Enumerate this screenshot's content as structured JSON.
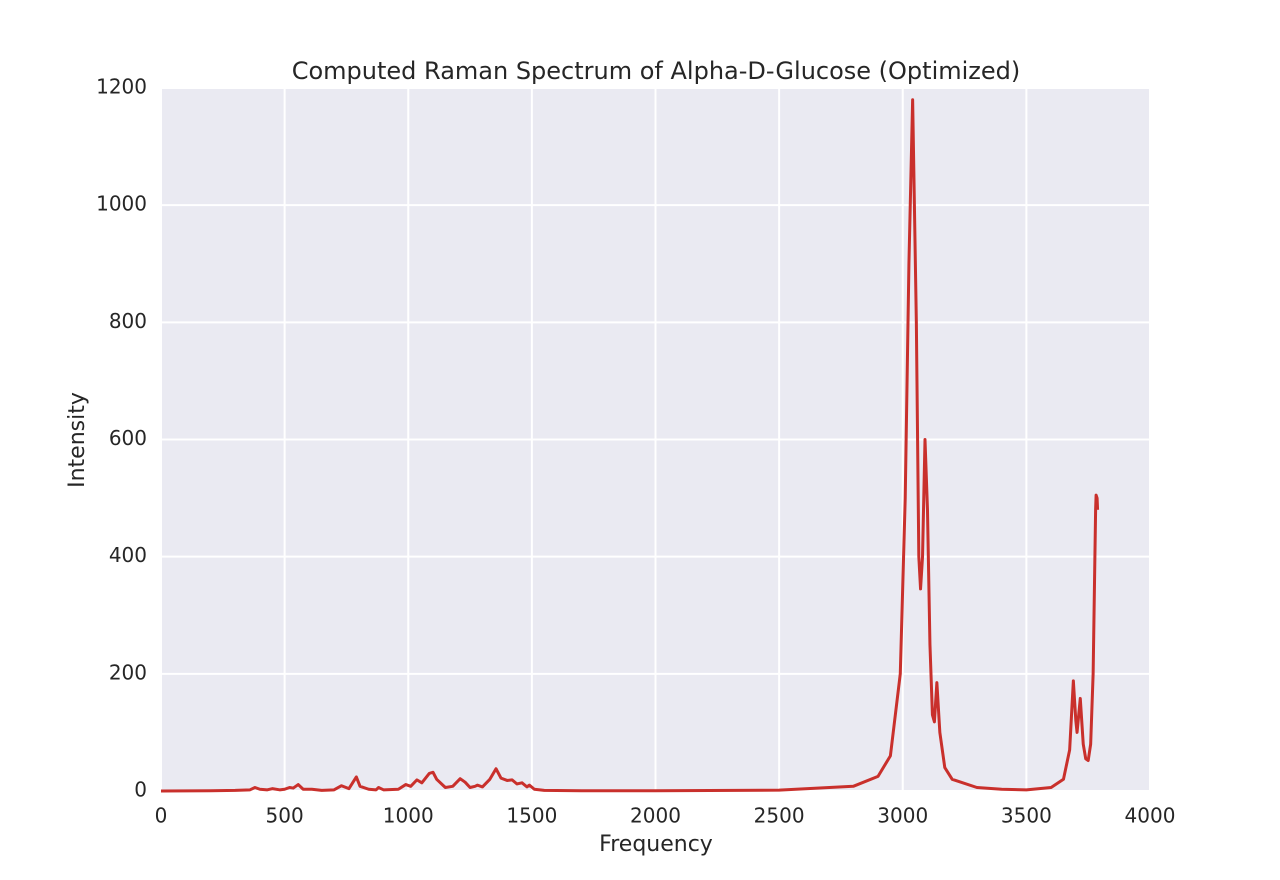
{
  "chart_data": {
    "type": "line",
    "title": "Computed Raman Spectrum of Alpha-D-Glucose (Optimized)",
    "x_label": "Frequency",
    "y_label": "Intensity",
    "x": [
      0,
      200,
      300,
      360,
      380,
      400,
      430,
      450,
      480,
      500,
      520,
      535,
      555,
      575,
      610,
      650,
      700,
      730,
      760,
      790,
      805,
      840,
      870,
      880,
      900,
      960,
      990,
      1010,
      1035,
      1055,
      1085,
      1100,
      1115,
      1150,
      1180,
      1210,
      1230,
      1250,
      1270,
      1280,
      1300,
      1330,
      1355,
      1375,
      1400,
      1420,
      1440,
      1460,
      1480,
      1490,
      1510,
      1550,
      1700,
      2000,
      2500,
      2800,
      2900,
      2950,
      2990,
      3010,
      3025,
      3040,
      3055,
      3065,
      3072,
      3080,
      3090,
      3100,
      3110,
      3120,
      3128,
      3138,
      3150,
      3170,
      3200,
      3300,
      3400,
      3500,
      3600,
      3650,
      3675,
      3690,
      3700,
      3705,
      3718,
      3730,
      3740,
      3750,
      3760,
      3770,
      3780,
      3782,
      3786,
      3788
    ],
    "series": [
      {
        "name": "Intensity",
        "color": "#c9302c",
        "values": [
          0,
          0.5,
          1,
          2,
          6,
          3,
          2,
          4,
          2,
          3,
          6,
          5,
          11,
          3,
          3,
          1,
          2,
          9,
          4,
          24,
          8,
          3,
          2,
          6,
          2,
          3,
          11,
          8,
          19,
          14,
          30,
          32,
          20,
          6,
          8,
          21,
          15,
          6,
          8,
          10,
          7,
          20,
          38,
          22,
          18,
          19,
          12,
          14,
          7,
          10,
          3,
          1,
          0.5,
          0.5,
          1.5,
          8,
          25,
          60,
          200,
          500,
          900,
          1180,
          800,
          400,
          345,
          400,
          600,
          480,
          250,
          130,
          118,
          185,
          100,
          40,
          20,
          6,
          3,
          2,
          6,
          20,
          70,
          188,
          120,
          100,
          158,
          80,
          55,
          52,
          80,
          200,
          480,
          505,
          500,
          480
        ]
      }
    ],
    "xlim": [
      0,
      4000
    ],
    "ylim": [
      0,
      1200
    ],
    "xticks": [
      0,
      500,
      1000,
      1500,
      2000,
      2500,
      3000,
      3500,
      4000
    ],
    "yticks": [
      0,
      200,
      400,
      600,
      800,
      1000,
      1200
    ],
    "grid": true
  }
}
